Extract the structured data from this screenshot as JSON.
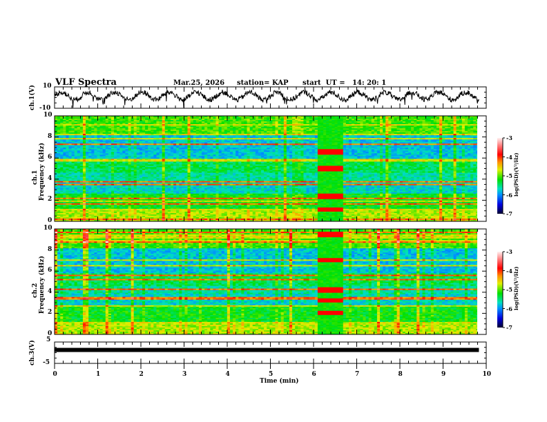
{
  "header": {
    "title": "VLF Spectra",
    "date": "Mar.25, 2026",
    "station": "station= KAP",
    "start": "start  UT =   14: 20: 1"
  },
  "chart_data": [
    {
      "type": "line",
      "name": "ch1-waveform",
      "ylabel": "ch.1(V)",
      "ylim": [
        -10,
        10
      ],
      "yticks": [
        "10",
        "-10"
      ],
      "xlim": [
        0,
        10
      ],
      "data_extent_min": 9.83
    },
    {
      "type": "heatmap",
      "name": "ch1-spectrogram",
      "ylabel_top": "ch.1",
      "ylabel": "Frequency  (kHz)",
      "ylim": [
        0,
        10
      ],
      "yticks": [
        "0",
        "2",
        "4",
        "6",
        "8",
        "10"
      ],
      "xlim": [
        0,
        10
      ],
      "event_window_min": [
        6.1,
        6.7
      ],
      "colorbar": {
        "label": "log(PSD)(V²/Hz)",
        "range": [
          -7,
          -3
        ],
        "ticks": [
          "-3",
          "-4",
          "-5",
          "-6",
          "-7"
        ]
      }
    },
    {
      "type": "heatmap",
      "name": "ch2-spectrogram",
      "ylabel_top": "ch.2",
      "ylabel": "Frequency  (kHz)",
      "ylim": [
        0,
        10
      ],
      "yticks": [
        "0",
        "2",
        "4",
        "6",
        "8",
        "10"
      ],
      "xlim": [
        0,
        10
      ],
      "event_window_min": [
        6.1,
        6.7
      ],
      "colorbar": {
        "label": "log(PSD)(V²/Hz)",
        "range": [
          -7,
          -3
        ],
        "ticks": [
          "-3",
          "-4",
          "-5",
          "-6",
          "-7"
        ]
      }
    },
    {
      "type": "line",
      "name": "ch3-waveform",
      "ylabel": "ch.3(V)",
      "ylim": [
        -5,
        5
      ],
      "yticks": [
        "5",
        "-5"
      ],
      "level_value": 1.3,
      "xlim": [
        0,
        10
      ],
      "xlabel": "Time  (min)",
      "xticks": [
        "0",
        "1",
        "2",
        "3",
        "4",
        "5",
        "6",
        "7",
        "8",
        "9",
        "10"
      ]
    }
  ]
}
